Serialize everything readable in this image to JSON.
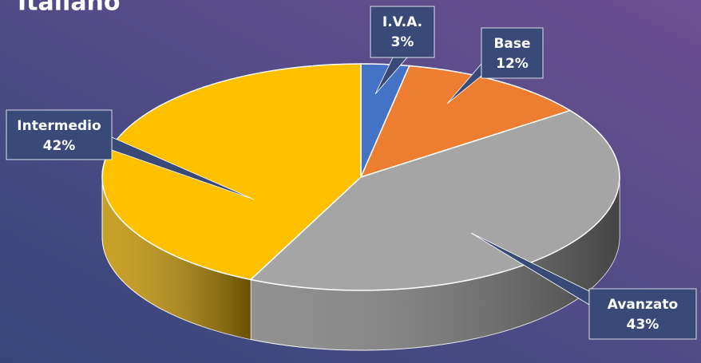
{
  "chart_data": {
    "type": "pie",
    "title": "Italiano",
    "categories": [
      "I.V.A.",
      "Base",
      "Intermedio",
      "Avanzato"
    ],
    "values": [
      3,
      12,
      42,
      43
    ],
    "value_labels": [
      "3%",
      "12%",
      "42%",
      "43%"
    ],
    "colors": [
      "#4472c4",
      "#ed7d31",
      "#a5a5a5",
      "#ffc000"
    ]
  }
}
